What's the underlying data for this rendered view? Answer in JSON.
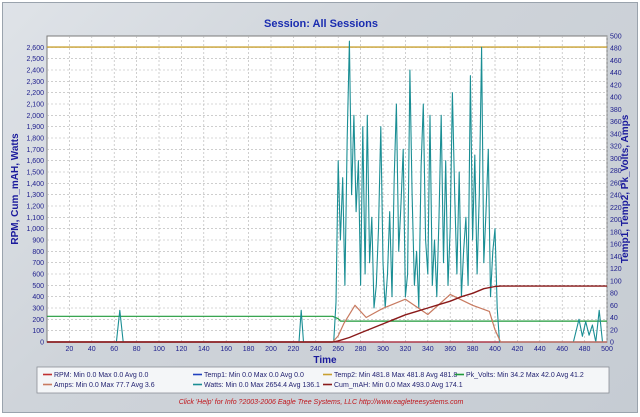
{
  "chart_data": {
    "type": "line",
    "title": "Session: All Sessions",
    "xlabel": "Time",
    "ylabel_left": "RPM, Cum_mAH, Watts",
    "ylabel_right": "Temp1, Temp2, Pk_Volts, Amps",
    "xlim": [
      0,
      500
    ],
    "ylim_left": [
      0,
      2700
    ],
    "ylim_right": [
      0,
      500
    ],
    "x_ticks": [
      20,
      40,
      60,
      80,
      100,
      120,
      140,
      160,
      180,
      200,
      220,
      240,
      260,
      280,
      300,
      320,
      340,
      360,
      380,
      400,
      420,
      440,
      460,
      480,
      500
    ],
    "y_left_ticks": [
      "0",
      "100",
      "200",
      "300",
      "400",
      "500",
      "600",
      "700",
      "800",
      "900",
      "1,000",
      "1,100",
      "1,200",
      "1,300",
      "1,400",
      "1,500",
      "1,600",
      "1,700",
      "1,800",
      "1,900",
      "2,000",
      "2,100",
      "2,200",
      "2,300",
      "2,400",
      "2,500",
      "2,600"
    ],
    "y_right_ticks": [
      0,
      20,
      40,
      60,
      80,
      100,
      120,
      140,
      160,
      180,
      200,
      220,
      240,
      260,
      280,
      300,
      320,
      340,
      360,
      380,
      400,
      420,
      440,
      460,
      480,
      500
    ],
    "grid": true,
    "legend_position": "bottom",
    "series": [
      {
        "name": "RPM",
        "axis": "left",
        "color": "#c03030",
        "legend": "RPM:  Min 0.0 Max 0.0 Avg 0.0",
        "x": [
          0,
          500
        ],
        "y": [
          0,
          0
        ]
      },
      {
        "name": "Temp1",
        "axis": "right",
        "color": "#2040c0",
        "legend": "Temp1:  Min 0.0 Max 0.0 Avg 0.0",
        "x": [
          0,
          500
        ],
        "y": [
          0,
          0
        ]
      },
      {
        "name": "Temp2",
        "axis": "right",
        "color": "#c8a030",
        "legend": "Temp2:  Min 481.8 Max 481.8 Avg 481.8",
        "x": [
          0,
          500
        ],
        "y": [
          481.8,
          481.8
        ]
      },
      {
        "name": "Pk_Volts",
        "axis": "right",
        "color": "#1f9a3a",
        "legend": "Pk_Volts:  Min 34.2 Max 42.0 Avg 41.2",
        "x": [
          0,
          255,
          260,
          262,
          500
        ],
        "y": [
          42.0,
          42.0,
          38.0,
          34.2,
          34.2
        ]
      },
      {
        "name": "Amps",
        "axis": "right",
        "color": "#c87a60",
        "legend": "Amps:  Min 0.0 Max 77.7 Avg 3.6",
        "x": [
          0,
          255,
          260,
          265,
          275,
          285,
          300,
          320,
          340,
          360,
          380,
          395,
          400,
          405,
          500
        ],
        "y": [
          0,
          0,
          10,
          30,
          60,
          40,
          55,
          70,
          45,
          77.7,
          60,
          50,
          20,
          0,
          0
        ]
      },
      {
        "name": "Watts",
        "axis": "left",
        "color": "#1a8e94",
        "legend": "Watts:  Min 0.0 Max 2654.4 Avg 136.1",
        "x": [
          0,
          62,
          65,
          68,
          225,
          227,
          229,
          256,
          258,
          260,
          262,
          264,
          266,
          268,
          270,
          272,
          274,
          276,
          278,
          280,
          282,
          284,
          286,
          288,
          290,
          292,
          294,
          296,
          298,
          300,
          302,
          304,
          306,
          308,
          310,
          312,
          314,
          316,
          318,
          320,
          322,
          324,
          326,
          328,
          330,
          332,
          334,
          336,
          338,
          340,
          342,
          344,
          346,
          348,
          350,
          352,
          354,
          356,
          358,
          360,
          362,
          364,
          366,
          368,
          370,
          372,
          374,
          376,
          378,
          380,
          382,
          384,
          386,
          388,
          390,
          392,
          394,
          396,
          398,
          400,
          402,
          404,
          470,
          475,
          478,
          481,
          484,
          487,
          490,
          493,
          496,
          500
        ],
        "y": [
          0,
          0,
          280,
          0,
          0,
          280,
          0,
          0,
          350,
          1600,
          900,
          1450,
          500,
          1800,
          2654,
          1300,
          2000,
          1150,
          1600,
          500,
          1900,
          600,
          2000,
          700,
          1100,
          300,
          500,
          1000,
          1900,
          700,
          300,
          600,
          1150,
          400,
          1450,
          2100,
          800,
          1200,
          1700,
          400,
          600,
          2400,
          1300,
          500,
          800,
          300,
          1550,
          2100,
          900,
          600,
          2000,
          500,
          900,
          400,
          1100,
          2000,
          700,
          1600,
          500,
          1000,
          2200,
          1300,
          600,
          1500,
          400,
          800,
          1100,
          500,
          2350,
          900,
          1650,
          600,
          1300,
          2600,
          700,
          1150,
          1700,
          400,
          800,
          1000,
          300,
          0,
          0,
          200,
          50,
          180,
          60,
          150,
          0,
          280,
          0,
          0
        ]
      },
      {
        "name": "Cum_mAH",
        "axis": "left",
        "color": "#8a1a1a",
        "legend": "Cum_mAH:  Min 0.0 Max 493.0 Avg 174.1",
        "x": [
          0,
          255,
          260,
          270,
          280,
          290,
          300,
          310,
          320,
          330,
          340,
          350,
          360,
          370,
          380,
          390,
          400,
          405,
          500
        ],
        "y": [
          0,
          0,
          10,
          40,
          80,
          120,
          160,
          200,
          240,
          270,
          300,
          330,
          360,
          400,
          430,
          470,
          490,
          493,
          493
        ]
      }
    ]
  },
  "footer": "Click 'Help' for Info   ?2003-2006 Eagle Tree Systems, LLC    http://www.eagletreesystems.com"
}
